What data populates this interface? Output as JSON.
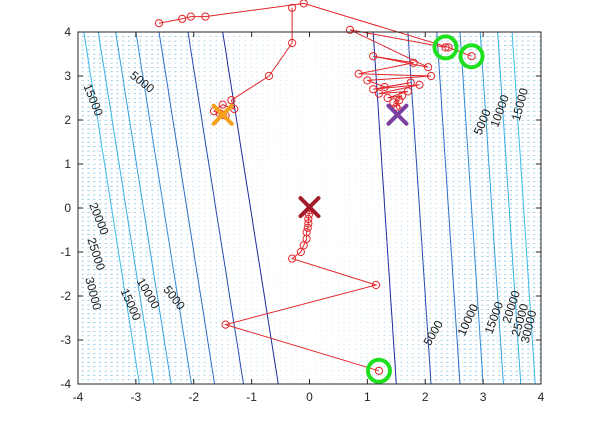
{
  "chart_data": {
    "type": "contour",
    "xlim": [
      -4,
      4
    ],
    "ylim": [
      -4,
      4
    ],
    "xticks": [
      "-4",
      "-3",
      "-2",
      "-1",
      "0",
      "1",
      "2",
      "3",
      "4"
    ],
    "yticks": [
      "-4",
      "-3",
      "-2",
      "-1",
      "0",
      "1",
      "2",
      "3",
      "4"
    ],
    "grid": false,
    "colors": {
      "contour_low": "#1f2a9c",
      "contour_high": "#33aee0",
      "quiver": "#5ab0e0",
      "path": "#e3262a",
      "start_marker": "#1ee01e",
      "marker_orange": "#f7a21b",
      "marker_purple": "#7a3fa0",
      "marker_darkred": "#a31a2a"
    },
    "contour_labels": [
      {
        "text": "15000",
        "x": -3.75,
        "y": 2.45,
        "angle": 68
      },
      {
        "text": "5000",
        "x": -2.9,
        "y": 2.85,
        "angle": 38
      },
      {
        "text": "20000",
        "x": -3.65,
        "y": -0.25,
        "angle": 68
      },
      {
        "text": "25000",
        "x": -3.7,
        "y": -1.05,
        "angle": 72
      },
      {
        "text": "30000",
        "x": -3.75,
        "y": -1.95,
        "angle": 75
      },
      {
        "text": "15000",
        "x": -3.1,
        "y": -2.2,
        "angle": 66
      },
      {
        "text": "10000",
        "x": -2.8,
        "y": -1.95,
        "angle": 60
      },
      {
        "text": "5000",
        "x": -2.35,
        "y": -2.05,
        "angle": 52
      },
      {
        "text": "5000",
        "x": 3.0,
        "y": 1.95,
        "angle": -68
      },
      {
        "text": "10000",
        "x": 3.3,
        "y": 2.2,
        "angle": -70
      },
      {
        "text": "15000",
        "x": 3.65,
        "y": 2.35,
        "angle": -75
      },
      {
        "text": "5000",
        "x": 2.15,
        "y": -2.85,
        "angle": -60
      },
      {
        "text": "10000",
        "x": 2.75,
        "y": -2.55,
        "angle": -65
      },
      {
        "text": "15000",
        "x": 3.2,
        "y": -2.5,
        "angle": -70
      },
      {
        "text": "20000",
        "x": 3.5,
        "y": -2.25,
        "angle": -72
      },
      {
        "text": "25000",
        "x": 3.65,
        "y": -2.55,
        "angle": -74
      },
      {
        "text": "30000",
        "x": 3.8,
        "y": -2.7,
        "angle": -76
      }
    ],
    "paths": [
      {
        "name": "path-A",
        "points": [
          [
            2.8,
            3.45
          ],
          [
            2.4,
            3.65
          ],
          [
            -0.1,
            4.65
          ],
          [
            -1.8,
            4.35
          ],
          [
            -2.05,
            4.35
          ],
          [
            -2.2,
            4.3
          ],
          [
            -2.6,
            4.2
          ]
        ]
      },
      {
        "name": "path-B",
        "points": [
          [
            2.35,
            3.65
          ],
          [
            0.7,
            4.05
          ],
          [
            2.05,
            3.2
          ],
          [
            1.1,
            3.45
          ],
          [
            1.8,
            3.3
          ],
          [
            0.85,
            3.05
          ],
          [
            2.1,
            3.0
          ],
          [
            1.0,
            2.9
          ],
          [
            1.3,
            2.75
          ],
          [
            1.75,
            2.85
          ],
          [
            1.1,
            2.7
          ],
          [
            1.9,
            2.8
          ],
          [
            1.2,
            2.6
          ],
          [
            1.7,
            2.65
          ],
          [
            1.35,
            2.5
          ],
          [
            1.6,
            2.55
          ],
          [
            1.45,
            2.4
          ],
          [
            1.55,
            2.45
          ],
          [
            1.5,
            2.3
          ],
          [
            1.52,
            2.25
          ]
        ]
      },
      {
        "name": "path-C",
        "points": [
          [
            -0.3,
            4.55
          ],
          [
            -0.3,
            3.75
          ],
          [
            -0.7,
            3.0
          ],
          [
            -1.35,
            2.45
          ],
          [
            -1.3,
            2.25
          ],
          [
            -1.5,
            2.35
          ],
          [
            -1.65,
            2.2
          ],
          [
            -1.45,
            2.1
          ],
          [
            -1.55,
            2.15
          ],
          [
            -1.5,
            2.12
          ]
        ]
      },
      {
        "name": "path-D",
        "points": [
          [
            1.2,
            -3.7
          ],
          [
            -1.45,
            -2.65
          ],
          [
            1.15,
            -1.75
          ],
          [
            -0.3,
            -1.15
          ],
          [
            -0.15,
            -1.0
          ],
          [
            -0.1,
            -0.85
          ],
          [
            -0.05,
            -0.7
          ],
          [
            -0.05,
            -0.55
          ],
          [
            -0.03,
            -0.45
          ],
          [
            -0.02,
            -0.35
          ],
          [
            -0.02,
            -0.25
          ],
          [
            -0.01,
            -0.15
          ],
          [
            0.0,
            -0.05
          ]
        ]
      }
    ],
    "start_markers": [
      [
        2.35,
        3.65
      ],
      [
        2.8,
        3.45
      ],
      [
        1.2,
        -3.7
      ]
    ],
    "minima_markers": [
      {
        "name": "orange",
        "x": -1.5,
        "y": 2.12
      },
      {
        "name": "purple",
        "x": 1.52,
        "y": 2.12
      },
      {
        "name": "darkred",
        "x": 0.0,
        "y": 0.02
      }
    ]
  }
}
